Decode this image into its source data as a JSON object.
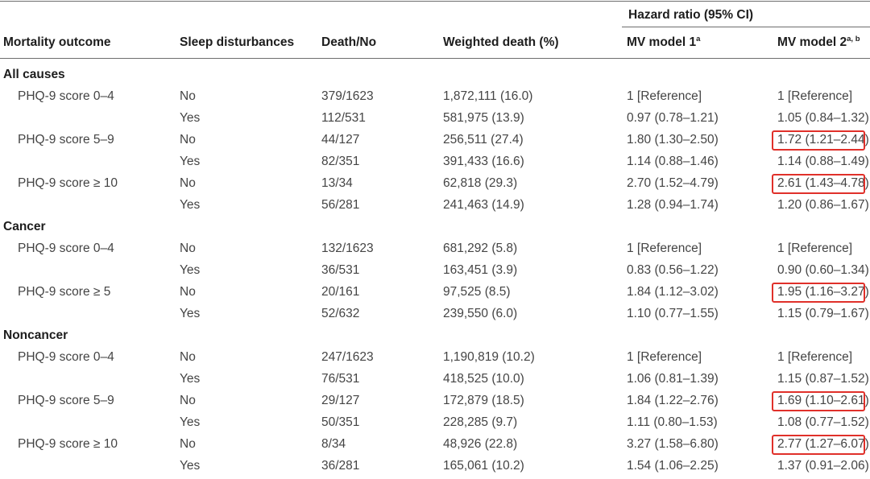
{
  "table": {
    "headers": {
      "outcome": "Mortality outcome",
      "sleep": "Sleep disturbances",
      "death_no": "Death/No",
      "weighted_death": "Weighted death (%)",
      "hazard_ratio": "Hazard ratio (95% CI)",
      "model1": "MV model 1",
      "model1_sup": "a",
      "model2": "MV model 2",
      "model2_sup": "a, b"
    },
    "groups": [
      {
        "label": "All causes",
        "rows": [
          {
            "score": "PHQ-9 score 0–4",
            "sleep": "No",
            "death_no": "379/1623",
            "weighted_death": "1,872,111 (16.0)",
            "m1": "1 [Reference]",
            "m2": "1 [Reference]",
            "highlight": false
          },
          {
            "score": "",
            "sleep": "Yes",
            "death_no": "112/531",
            "weighted_death": "581,975 (13.9)",
            "m1": "0.97 (0.78–1.21)",
            "m2": "1.05 (0.84–1.32)",
            "highlight": false
          },
          {
            "score": "PHQ-9 score 5–9",
            "sleep": "No",
            "death_no": "44/127",
            "weighted_death": "256,511 (27.4)",
            "m1": "1.80 (1.30–2.50)",
            "m2": "1.72 (1.21–2.44)",
            "highlight": true
          },
          {
            "score": "",
            "sleep": "Yes",
            "death_no": "82/351",
            "weighted_death": "391,433 (16.6)",
            "m1": "1.14 (0.88–1.46)",
            "m2": "1.14 (0.88–1.49)",
            "highlight": false
          },
          {
            "score": "PHQ-9 score ≥ 10",
            "sleep": "No",
            "death_no": "13/34",
            "weighted_death": "62,818 (29.3)",
            "m1": "2.70 (1.52–4.79)",
            "m2": "2.61 (1.43–4.78)",
            "highlight": true
          },
          {
            "score": "",
            "sleep": "Yes",
            "death_no": "56/281",
            "weighted_death": "241,463 (14.9)",
            "m1": "1.28 (0.94–1.74)",
            "m2": "1.20 (0.86–1.67)",
            "highlight": false
          }
        ]
      },
      {
        "label": "Cancer",
        "rows": [
          {
            "score": "PHQ-9 score 0–4",
            "sleep": "No",
            "death_no": "132/1623",
            "weighted_death": "681,292 (5.8)",
            "m1": "1 [Reference]",
            "m2": "1 [Reference]",
            "highlight": false
          },
          {
            "score": "",
            "sleep": "Yes",
            "death_no": "36/531",
            "weighted_death": "163,451 (3.9)",
            "m1": "0.83 (0.56–1.22)",
            "m2": "0.90 (0.60–1.34)",
            "highlight": false
          },
          {
            "score": "PHQ-9 score ≥ 5",
            "sleep": "No",
            "death_no": "20/161",
            "weighted_death": "97,525 (8.5)",
            "m1": "1.84 (1.12–3.02)",
            "m2": "1.95 (1.16–3.27)",
            "highlight": true
          },
          {
            "score": "",
            "sleep": "Yes",
            "death_no": "52/632",
            "weighted_death": "239,550 (6.0)",
            "m1": "1.10 (0.77–1.55)",
            "m2": "1.15 (0.79–1.67)",
            "highlight": false
          }
        ]
      },
      {
        "label": "Noncancer",
        "rows": [
          {
            "score": "PHQ-9 score 0–4",
            "sleep": "No",
            "death_no": "247/1623",
            "weighted_death": "1,190,819 (10.2)",
            "m1": "1 [Reference]",
            "m2": "1 [Reference]",
            "highlight": false
          },
          {
            "score": "",
            "sleep": "Yes",
            "death_no": "76/531",
            "weighted_death": "418,525 (10.0)",
            "m1": "1.06 (0.81–1.39)",
            "m2": "1.15 (0.87–1.52)",
            "highlight": false
          },
          {
            "score": "PHQ-9 score 5–9",
            "sleep": "No",
            "death_no": "29/127",
            "weighted_death": "172,879 (18.5)",
            "m1": "1.84 (1.22–2.76)",
            "m2": "1.69 (1.10–2.61)",
            "highlight": true
          },
          {
            "score": "",
            "sleep": "Yes",
            "death_no": "50/351",
            "weighted_death": "228,285 (9.7)",
            "m1": "1.11 (0.80–1.53)",
            "m2": "1.08 (0.77–1.52)",
            "highlight": false
          },
          {
            "score": "PHQ-9 score ≥ 10",
            "sleep": "No",
            "death_no": "8/34",
            "weighted_death": "48,926 (22.8)",
            "m1": "3.27 (1.58–6.80)",
            "m2": "2.77 (1.27–6.07)",
            "highlight": true
          },
          {
            "score": "",
            "sleep": "Yes",
            "death_no": "36/281",
            "weighted_death": "165,061 (10.2)",
            "m1": "1.54 (1.06–2.25)",
            "m2": "1.37 (0.91–2.06)",
            "highlight": false
          }
        ]
      }
    ]
  },
  "colors": {
    "highlight": "#e0302a",
    "rule": "#6d6d6d",
    "text": "#444444"
  }
}
